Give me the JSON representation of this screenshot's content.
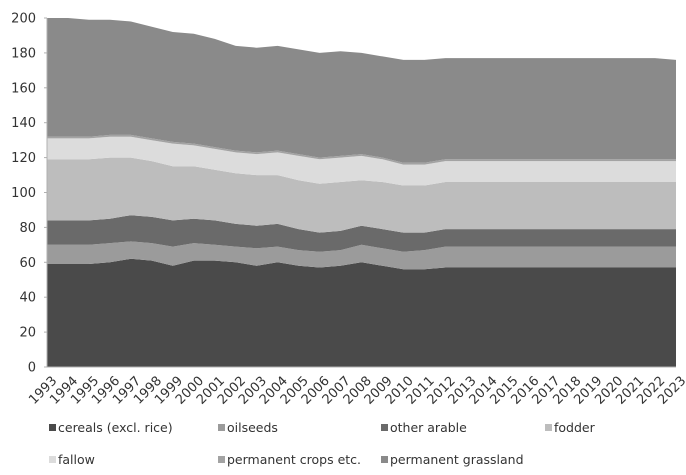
{
  "chart_data": {
    "type": "area",
    "stacked": true,
    "title": "",
    "xlabel": "",
    "ylabel": "",
    "ylim": [
      0,
      200
    ],
    "yticks": [
      0,
      20,
      40,
      60,
      80,
      100,
      120,
      140,
      160,
      180,
      200
    ],
    "grid": false,
    "legend_position": "bottom",
    "x": [
      "1993",
      "1994",
      "1995",
      "1996",
      "1997",
      "1998",
      "1999",
      "2000",
      "2001",
      "2002",
      "2003",
      "2004",
      "2005",
      "2006",
      "2007",
      "2008",
      "2009",
      "2010",
      "2011",
      "2012",
      "2013",
      "2014",
      "2015",
      "2016",
      "2017",
      "2018",
      "2019",
      "2020",
      "2021",
      "2022",
      "2023"
    ],
    "series": [
      {
        "name": "cereals (excl. rice)",
        "color": "#4a4a4a",
        "values": [
          59,
          59,
          59,
          60,
          62,
          61,
          58,
          61,
          61,
          60,
          58,
          60,
          58,
          57,
          58,
          60,
          58,
          56,
          56,
          57,
          57,
          57,
          57,
          57,
          57,
          57,
          57,
          57,
          57,
          57,
          57
        ]
      },
      {
        "name": "oilseeds",
        "color": "#9b9b9b",
        "values": [
          11,
          11,
          11,
          11,
          10,
          10,
          11,
          10,
          9,
          9,
          10,
          9,
          9,
          9,
          9,
          10,
          10,
          10,
          11,
          12,
          12,
          12,
          12,
          12,
          12,
          12,
          12,
          12,
          12,
          12,
          12
        ]
      },
      {
        "name": "other arable",
        "color": "#6a6a6a",
        "values": [
          14,
          14,
          14,
          14,
          15,
          15,
          15,
          14,
          14,
          13,
          13,
          13,
          12,
          11,
          11,
          11,
          11,
          11,
          10,
          10,
          10,
          10,
          10,
          10,
          10,
          10,
          10,
          10,
          10,
          10,
          10
        ]
      },
      {
        "name": "fodder",
        "color": "#bdbdbd",
        "values": [
          35,
          35,
          35,
          35,
          33,
          32,
          31,
          30,
          29,
          29,
          29,
          28,
          28,
          28,
          28,
          26,
          27,
          27,
          27,
          27,
          27,
          27,
          27,
          27,
          27,
          27,
          27,
          27,
          27,
          27,
          27
        ]
      },
      {
        "name": "fallow",
        "color": "#dcdcdc",
        "values": [
          12,
          12,
          12,
          12,
          12,
          12,
          13,
          12,
          12,
          12,
          12,
          13,
          14,
          14,
          14,
          14,
          13,
          12,
          12,
          12,
          12,
          12,
          12,
          12,
          12,
          12,
          12,
          12,
          12,
          12,
          12
        ]
      },
      {
        "name": "permanent crops etc.",
        "color": "#a3a3a3",
        "values": [
          1,
          1,
          1,
          1,
          1,
          1,
          1,
          1,
          1,
          1,
          1,
          1,
          1,
          1,
          1,
          1,
          1,
          1,
          1,
          1,
          1,
          1,
          1,
          1,
          1,
          1,
          1,
          1,
          1,
          1,
          1
        ]
      },
      {
        "name": "permanent grassland",
        "color": "#8a8a8a",
        "values": [
          68,
          68,
          67,
          66,
          65,
          64,
          63,
          63,
          62,
          60,
          60,
          60,
          60,
          60,
          60,
          58,
          58,
          59,
          59,
          58,
          58,
          58,
          58,
          58,
          58,
          58,
          58,
          58,
          58,
          58,
          57
        ]
      }
    ]
  }
}
